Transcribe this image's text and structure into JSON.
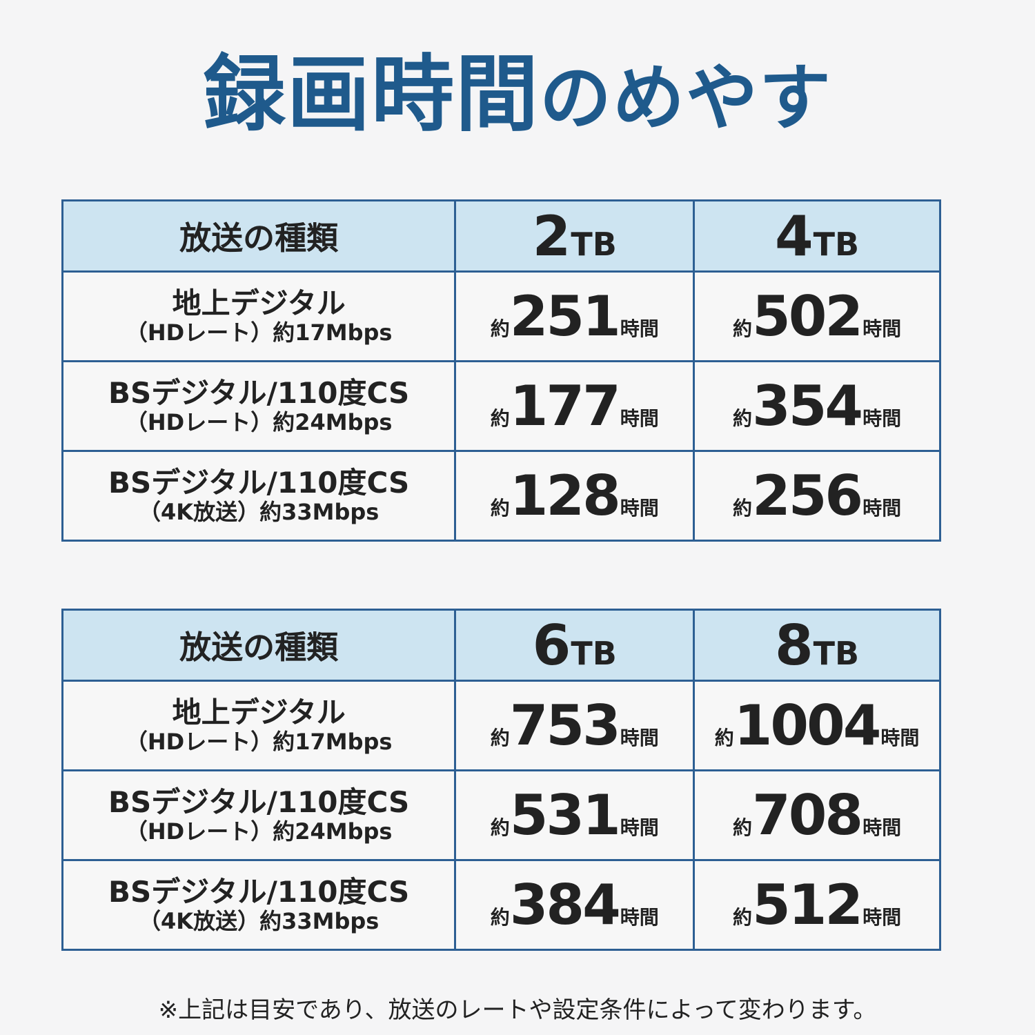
{
  "title": {
    "kanji": "録画時間",
    "kana": "のめやす"
  },
  "header_label": "放送の種類",
  "hour_prefix": "約",
  "hour_unit": "時間",
  "tables": [
    {
      "capacities": [
        {
          "num": "2",
          "unit": "TB"
        },
        {
          "num": "4",
          "unit": "TB"
        }
      ],
      "rows": [
        {
          "main": "地上デジタル",
          "sub": "（HDレート）約17Mbps",
          "values": [
            "251",
            "502"
          ]
        },
        {
          "main": "BSデジタル/110度CS",
          "sub": "（HDレート）約24Mbps",
          "values": [
            "177",
            "354"
          ]
        },
        {
          "main": "BSデジタル/110度CS",
          "sub": "（4K放送）約33Mbps",
          "values": [
            "128",
            "256"
          ]
        }
      ]
    },
    {
      "capacities": [
        {
          "num": "6",
          "unit": "TB"
        },
        {
          "num": "8",
          "unit": "TB"
        }
      ],
      "rows": [
        {
          "main": "地上デジタル",
          "sub": "（HDレート）約17Mbps",
          "values": [
            "753",
            "1004"
          ]
        },
        {
          "main": "BSデジタル/110度CS",
          "sub": "（HDレート）約24Mbps",
          "values": [
            "531",
            "708"
          ]
        },
        {
          "main": "BSデジタル/110度CS",
          "sub": "（4K放送）約33Mbps",
          "values": [
            "384",
            "512"
          ]
        }
      ]
    }
  ],
  "note": "※上記は目安であり、放送のレートや設定条件によって変わります。"
}
